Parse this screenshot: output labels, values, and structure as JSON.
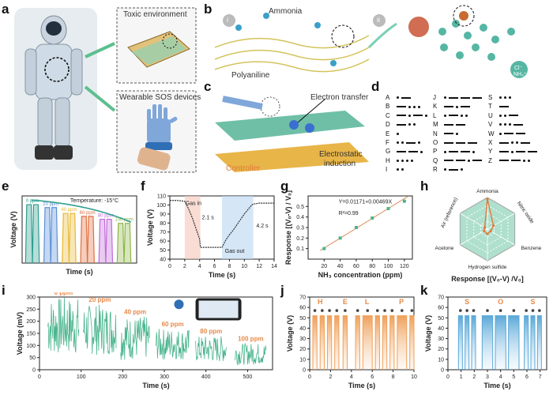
{
  "panel_letters": [
    "a",
    "b",
    "c",
    "d",
    "e",
    "f",
    "g",
    "h",
    "i",
    "j",
    "k"
  ],
  "a": {
    "toxic_label": "Toxic environment",
    "wearable_label": "Wearable SOS devices"
  },
  "b": {
    "roman_i": "i",
    "roman_ii": "ii",
    "ammonia_label": "Ammonia",
    "polyaniline_label": "Polyaniline",
    "ion_label_1": "Cl⁻",
    "ion_label_2": "NH₄⁺"
  },
  "c": {
    "electron_transfer": "Electron transfer",
    "controller": "Controller",
    "electrostatic_1": "Electrostatic",
    "electrostatic_2": "induction"
  },
  "d": {
    "morse": [
      {
        "l": "A",
        "c": ".-"
      },
      {
        "l": "B",
        "c": "-..."
      },
      {
        "l": "C",
        "c": "-.-."
      },
      {
        "l": "D",
        "c": "-.."
      },
      {
        "l": "E",
        "c": "."
      },
      {
        "l": "F",
        "c": "..-."
      },
      {
        "l": "G",
        "c": "--."
      },
      {
        "l": "H",
        "c": "...."
      },
      {
        "l": "I",
        "c": ".."
      },
      {
        "l": "J",
        "c": ".---"
      },
      {
        "l": "K",
        "c": "-.-"
      },
      {
        "l": "L",
        "c": ".-.."
      },
      {
        "l": "M",
        "c": "--"
      },
      {
        "l": "N",
        "c": "-."
      },
      {
        "l": "O",
        "c": "---"
      },
      {
        "l": "P",
        "c": ".--."
      },
      {
        "l": "Q",
        "c": "--.-"
      },
      {
        "l": "R",
        "c": ".-."
      },
      {
        "l": "S",
        "c": "..."
      },
      {
        "l": "T",
        "c": "-"
      },
      {
        "l": "U",
        "c": "..-"
      },
      {
        "l": "V",
        "c": "...-"
      },
      {
        "l": "W",
        "c": ".--"
      },
      {
        "l": "X",
        "c": "-..-"
      },
      {
        "l": "Y",
        "c": "-.--"
      },
      {
        "l": "Z",
        "c": "--.."
      }
    ]
  },
  "chart_data": [
    {
      "id": "e",
      "type": "line",
      "ylabel": "Voltage (V)",
      "xlabel": "Time (s)",
      "annotation": "Temperature: -15°C",
      "series": [
        {
          "name": "0 ppm",
          "peak": 100,
          "color": "#2f9e8e"
        },
        {
          "name": "20 ppm",
          "peak": 95,
          "color": "#5a8fd6"
        },
        {
          "name": "40 ppm",
          "peak": 85,
          "color": "#e8b830"
        },
        {
          "name": "60 ppm",
          "peak": 80,
          "color": "#e07040"
        },
        {
          "name": "80 ppm",
          "peak": 75,
          "color": "#c06ad8"
        },
        {
          "name": "100 ppm",
          "peak": 68,
          "color": "#8fb64a"
        }
      ]
    },
    {
      "id": "f",
      "type": "line",
      "ylabel": "Voltage (V)",
      "xlabel": "Time (s)",
      "ylim": [
        40,
        110
      ],
      "xlim": [
        0,
        14
      ],
      "xticks": [
        0,
        2,
        4,
        6,
        8,
        10,
        12,
        14
      ],
      "yticks": [
        40,
        50,
        60,
        70,
        80,
        90,
        100,
        110
      ],
      "gas_in_label": "Gas in",
      "gas_out_label": "Gas out",
      "t_in_label": "2.1 s",
      "t_out_label": "4.2 s",
      "gas_in_span": [
        2.0,
        4.1
      ],
      "gas_out_span": [
        7.0,
        11.2
      ],
      "x": [
        0,
        1,
        2,
        2.5,
        3,
        3.5,
        4,
        4.1,
        5,
        6,
        7,
        7.5,
        8,
        8.5,
        9,
        9.5,
        10,
        10.5,
        11,
        11.2,
        12,
        13,
        14
      ],
      "y": [
        105,
        105,
        104,
        96,
        86,
        74,
        62,
        53,
        53,
        53,
        53,
        61,
        67,
        72,
        78,
        84,
        90,
        95,
        100,
        101,
        102,
        102,
        102
      ]
    },
    {
      "id": "g",
      "type": "scatter",
      "ylabel": "Response [(V₀-V) / V₀]",
      "xlabel": "NH₃ concentration (ppm)",
      "xlim": [
        0,
        130
      ],
      "ylim": [
        0.0,
        0.6
      ],
      "xticks": [
        20,
        40,
        60,
        80,
        100,
        120
      ],
      "yticks": [
        0.1,
        0.2,
        0.3,
        0.4,
        0.5
      ],
      "equation": "Y=0.01171+0.00469X",
      "r2": "R²=0.99",
      "x": [
        20,
        40,
        60,
        80,
        100,
        120
      ],
      "y": [
        0.1,
        0.2,
        0.3,
        0.39,
        0.48,
        0.55
      ],
      "fit": [
        0.01171,
        0.00469
      ]
    },
    {
      "id": "h",
      "type": "radar",
      "title": "Response [(V₀-V) /V₀]",
      "axes": [
        "Ammonia",
        "Nitric oxide",
        "Benzene",
        "Hydrogen sulfide",
        "Acetone",
        "Air (reference)"
      ],
      "values": [
        0.95,
        0.22,
        0.12,
        0.15,
        0.12,
        0.1
      ]
    },
    {
      "id": "i",
      "type": "line",
      "ylabel": "Voltage (mV)",
      "xlabel": "Time (s)",
      "xlim": [
        0,
        560
      ],
      "ylim": [
        0,
        300
      ],
      "xticks": [
        0,
        100,
        200,
        300,
        400,
        500
      ],
      "yticks": [
        0,
        50,
        100,
        150,
        200,
        250,
        300
      ],
      "segments": [
        {
          "label": "0 ppm",
          "x0": 20,
          "x1": 95,
          "hi": 300,
          "lo": 60
        },
        {
          "label": "20 ppm",
          "x0": 105,
          "x1": 185,
          "hi": 270,
          "lo": 60
        },
        {
          "label": "40 ppm",
          "x0": 195,
          "x1": 265,
          "hi": 220,
          "lo": 40
        },
        {
          "label": "60 ppm",
          "x0": 280,
          "x1": 360,
          "hi": 170,
          "lo": 40
        },
        {
          "label": "80 ppm",
          "x0": 375,
          "x1": 450,
          "hi": 140,
          "lo": 30
        },
        {
          "label": "100 ppm",
          "x0": 470,
          "x1": 545,
          "hi": 110,
          "lo": 20
        }
      ]
    },
    {
      "id": "j",
      "type": "line",
      "ylabel": "Voltage (V)",
      "xlabel": "Time (s)",
      "xlim": [
        0,
        10
      ],
      "ylim": [
        0,
        70
      ],
      "xticks": [
        0,
        2,
        4,
        6,
        8,
        10
      ],
      "yticks": [
        0,
        10,
        20,
        30,
        40,
        50,
        60,
        70
      ],
      "letters": [
        "H",
        "E",
        "L",
        "P"
      ],
      "pulses": [
        [
          0.3,
          0.7
        ],
        [
          1.0,
          1.4
        ],
        [
          1.7,
          2.1
        ],
        [
          2.4,
          2.8
        ],
        [
          3.2,
          3.6
        ],
        [
          4.4,
          4.8
        ],
        [
          5.1,
          6.0
        ],
        [
          6.3,
          6.7
        ],
        [
          7.0,
          7.4
        ],
        [
          7.7,
          8.1
        ],
        [
          8.4,
          9.3
        ],
        [
          9.6,
          10.0
        ]
      ],
      "peak": 52
    },
    {
      "id": "k",
      "type": "line",
      "ylabel": "Voltage (V)",
      "xlabel": "Time (s)",
      "xlim": [
        0,
        7.5
      ],
      "ylim": [
        0,
        70
      ],
      "xticks": [
        0,
        1,
        2,
        3,
        4,
        5,
        6,
        7
      ],
      "yticks": [
        0,
        10,
        20,
        30,
        40,
        50,
        60,
        70
      ],
      "letters": [
        "S",
        "O",
        "S"
      ],
      "pulses": [
        [
          0.8,
          1.1
        ],
        [
          1.3,
          1.6
        ],
        [
          1.8,
          2.1
        ],
        [
          2.6,
          3.4
        ],
        [
          3.6,
          4.4
        ],
        [
          4.6,
          5.4
        ],
        [
          5.8,
          6.1
        ],
        [
          6.3,
          6.6
        ],
        [
          6.8,
          7.1
        ]
      ],
      "peak": 52
    }
  ]
}
